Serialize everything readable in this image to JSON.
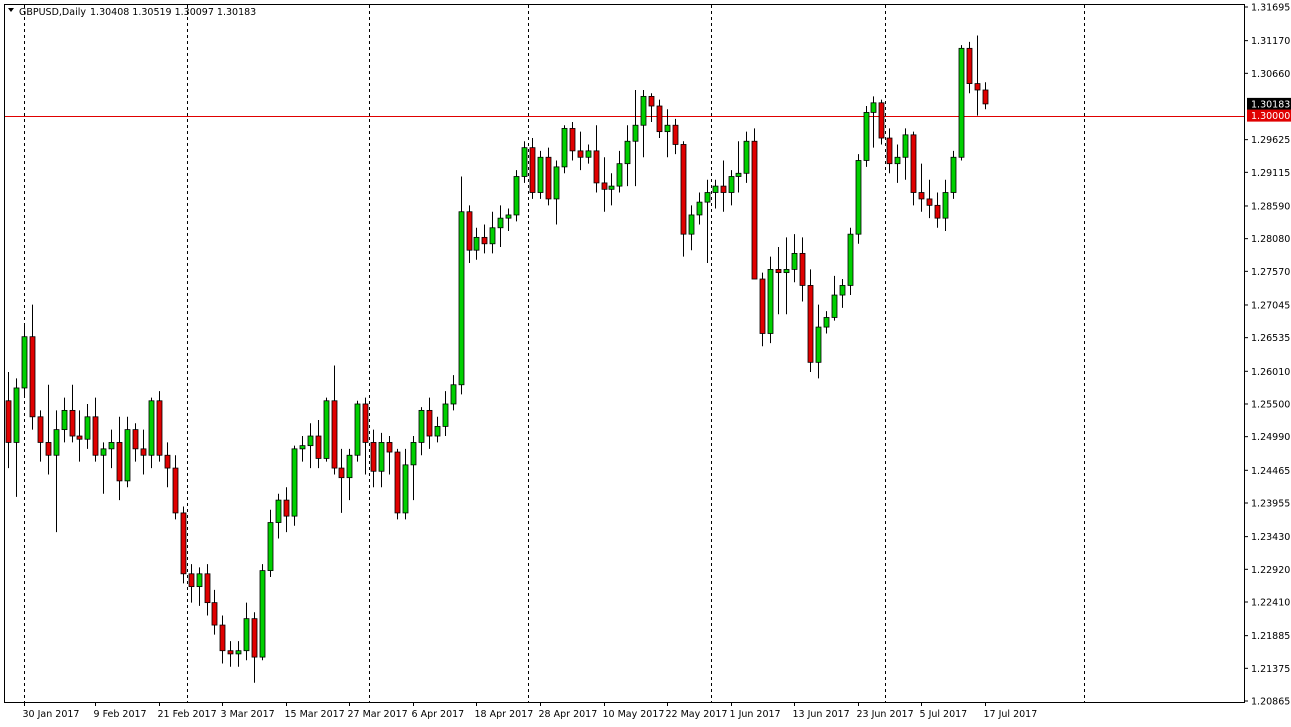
{
  "header": {
    "symbol": "GBPUSD,Daily",
    "quote": "1.30408 1.30519 1.30097 1.30183"
  },
  "colors": {
    "bull": "#00d000",
    "bear": "#e00000",
    "wick": "#000000",
    "level_line": "#e00000",
    "price_tag": "#000000",
    "level_tag": "#e00000"
  },
  "chart_data": {
    "type": "candlestick",
    "title": "",
    "xlabel": "",
    "ylabel": "",
    "ylim": [
      1.20865,
      1.31695
    ],
    "y_ticks": [
      "1.31695",
      "1.31170",
      "1.30660",
      "1.30183",
      "1.30000",
      "1.29625",
      "1.29115",
      "1.28590",
      "1.28080",
      "1.27570",
      "1.27045",
      "1.26535",
      "1.26010",
      "1.25500",
      "1.24990",
      "1.24465",
      "1.23955",
      "1.23430",
      "1.22920",
      "1.22410",
      "1.21885",
      "1.21375",
      "1.20865"
    ],
    "x_ticks": [
      {
        "label": "30 Jan 2017",
        "index": 2
      },
      {
        "label": "9 Feb 2017",
        "index": 11
      },
      {
        "label": "21 Feb 2017",
        "index": 19
      },
      {
        "label": "3 Mar 2017",
        "index": 27
      },
      {
        "label": "15 Mar 2017",
        "index": 35
      },
      {
        "label": "27 Mar 2017",
        "index": 43
      },
      {
        "label": "6 Apr 2017",
        "index": 51
      },
      {
        "label": "18 Apr 2017",
        "index": 59
      },
      {
        "label": "28 Apr 2017",
        "index": 67
      },
      {
        "label": "10 May 2017",
        "index": 75
      },
      {
        "label": "22 May 2017",
        "index": 83
      },
      {
        "label": "1 Jun 2017",
        "index": 91
      },
      {
        "label": "13 Jun 2017",
        "index": 99
      },
      {
        "label": "23 Jun 2017",
        "index": 107
      },
      {
        "label": "5 Jul 2017",
        "index": 115
      },
      {
        "label": "17 Jul 2017",
        "index": 123
      }
    ],
    "separators_index": [
      2,
      22.5,
      45.5,
      65.5,
      88.5,
      110.5,
      135.5
    ],
    "current_price": {
      "label": "1.30183",
      "value": 1.30183
    },
    "level": {
      "label": "1.30000",
      "value": 1.3
    },
    "ohlc": [
      [
        1.2555,
        1.26,
        1.245,
        1.249
      ],
      [
        1.249,
        1.259,
        1.2405,
        1.2575
      ],
      [
        1.2575,
        1.2675,
        1.256,
        1.2655
      ],
      [
        1.2655,
        1.2705,
        1.251,
        1.253
      ],
      [
        1.253,
        1.254,
        1.246,
        1.249
      ],
      [
        1.249,
        1.258,
        1.244,
        1.247
      ],
      [
        1.247,
        1.254,
        1.235,
        1.251
      ],
      [
        1.251,
        1.256,
        1.249,
        1.254
      ],
      [
        1.254,
        1.258,
        1.249,
        1.25
      ],
      [
        1.25,
        1.254,
        1.246,
        1.2495
      ],
      [
        1.2495,
        1.255,
        1.248,
        1.253
      ],
      [
        1.253,
        1.256,
        1.246,
        1.247
      ],
      [
        1.247,
        1.249,
        1.241,
        1.248
      ],
      [
        1.248,
        1.251,
        1.245,
        1.249
      ],
      [
        1.249,
        1.253,
        1.24,
        1.243
      ],
      [
        1.243,
        1.253,
        1.242,
        1.251
      ],
      [
        1.251,
        1.252,
        1.246,
        1.248
      ],
      [
        1.248,
        1.251,
        1.244,
        1.247
      ],
      [
        1.247,
        1.256,
        1.245,
        1.2555
      ],
      [
        1.2555,
        1.257,
        1.246,
        1.247
      ],
      [
        1.247,
        1.249,
        1.242,
        1.245
      ],
      [
        1.245,
        1.247,
        1.237,
        1.238
      ],
      [
        1.238,
        1.239,
        1.227,
        1.2285
      ],
      [
        1.2285,
        1.23,
        1.224,
        1.2265
      ],
      [
        1.2265,
        1.2295,
        1.2235,
        1.2285
      ],
      [
        1.2285,
        1.23,
        1.222,
        1.224
      ],
      [
        1.224,
        1.226,
        1.219,
        1.2205
      ],
      [
        1.2205,
        1.222,
        1.2145,
        1.2165
      ],
      [
        1.2165,
        1.218,
        1.214,
        1.216
      ],
      [
        1.216,
        1.218,
        1.214,
        1.2165
      ],
      [
        1.2165,
        1.224,
        1.215,
        1.2215
      ],
      [
        1.2215,
        1.2225,
        1.2115,
        1.2155
      ],
      [
        1.2155,
        1.23,
        1.215,
        1.229
      ],
      [
        1.229,
        1.2385,
        1.228,
        1.2365
      ],
      [
        1.2365,
        1.241,
        1.234,
        1.24
      ],
      [
        1.24,
        1.242,
        1.235,
        1.2375
      ],
      [
        1.2375,
        1.2485,
        1.236,
        1.248
      ],
      [
        1.248,
        1.25,
        1.246,
        1.2485
      ],
      [
        1.2485,
        1.252,
        1.245,
        1.25
      ],
      [
        1.25,
        1.2525,
        1.245,
        1.2465
      ],
      [
        1.2465,
        1.256,
        1.246,
        1.2555
      ],
      [
        1.2555,
        1.261,
        1.244,
        1.245
      ],
      [
        1.245,
        1.248,
        1.238,
        1.2435
      ],
      [
        1.2435,
        1.248,
        1.24,
        1.247
      ],
      [
        1.247,
        1.2555,
        1.246,
        1.255
      ],
      [
        1.255,
        1.256,
        1.244,
        1.249
      ],
      [
        1.249,
        1.251,
        1.242,
        1.2445
      ],
      [
        1.2445,
        1.2505,
        1.242,
        1.249
      ],
      [
        1.249,
        1.25,
        1.244,
        1.2475
      ],
      [
        1.2475,
        1.248,
        1.237,
        1.238
      ],
      [
        1.238,
        1.248,
        1.237,
        1.2455
      ],
      [
        1.2455,
        1.25,
        1.24,
        1.249
      ],
      [
        1.249,
        1.2545,
        1.247,
        1.254
      ],
      [
        1.254,
        1.256,
        1.248,
        1.25
      ],
      [
        1.25,
        1.253,
        1.249,
        1.2515
      ],
      [
        1.2515,
        1.257,
        1.25,
        1.255
      ],
      [
        1.255,
        1.2595,
        1.254,
        1.258
      ],
      [
        1.258,
        1.2905,
        1.2565,
        1.285
      ],
      [
        1.285,
        1.286,
        1.277,
        1.279
      ],
      [
        1.279,
        1.2825,
        1.2775,
        1.281
      ],
      [
        1.281,
        1.283,
        1.2785,
        1.28
      ],
      [
        1.28,
        1.285,
        1.2785,
        1.2825
      ],
      [
        1.2825,
        1.286,
        1.2795,
        1.284
      ],
      [
        1.284,
        1.2855,
        1.282,
        1.2845
      ],
      [
        1.2845,
        1.2915,
        1.2835,
        1.2905
      ],
      [
        1.2905,
        1.296,
        1.2895,
        1.295
      ],
      [
        1.295,
        1.2965,
        1.287,
        1.288
      ],
      [
        1.288,
        1.2945,
        1.287,
        1.2935
      ],
      [
        1.2935,
        1.295,
        1.286,
        1.287
      ],
      [
        1.287,
        1.293,
        1.283,
        1.292
      ],
      [
        1.292,
        1.2985,
        1.291,
        1.298
      ],
      [
        1.298,
        1.299,
        1.293,
        1.2945
      ],
      [
        1.2945,
        1.2975,
        1.2915,
        1.2935
      ],
      [
        1.2935,
        1.2955,
        1.2925,
        1.2945
      ],
      [
        1.2945,
        1.2985,
        1.288,
        1.2895
      ],
      [
        1.2895,
        1.2935,
        1.285,
        1.2885
      ],
      [
        1.2885,
        1.291,
        1.286,
        1.289
      ],
      [
        1.289,
        1.2945,
        1.288,
        1.2925
      ],
      [
        1.2925,
        1.2985,
        1.289,
        1.296
      ],
      [
        1.296,
        1.304,
        1.289,
        1.2985
      ],
      [
        1.2985,
        1.304,
        1.2935,
        1.303
      ],
      [
        1.303,
        1.3035,
        1.299,
        1.3015
      ],
      [
        1.3015,
        1.3025,
        1.2965,
        1.2975
      ],
      [
        1.2975,
        1.301,
        1.2935,
        1.2985
      ],
      [
        1.2985,
        1.2995,
        1.294,
        1.2955
      ],
      [
        1.2955,
        1.296,
        1.278,
        1.2815
      ],
      [
        1.2815,
        1.286,
        1.279,
        1.2845
      ],
      [
        1.2845,
        1.288,
        1.283,
        1.2865
      ],
      [
        1.2865,
        1.29,
        1.277,
        1.288
      ],
      [
        1.288,
        1.29,
        1.2855,
        1.289
      ],
      [
        1.289,
        1.293,
        1.285,
        1.288
      ],
      [
        1.288,
        1.2915,
        1.286,
        1.2905
      ],
      [
        1.2905,
        1.296,
        1.288,
        1.291
      ],
      [
        1.291,
        1.2975,
        1.2895,
        1.296
      ],
      [
        1.296,
        1.298,
        1.2745,
        1.2745
      ],
      [
        1.2745,
        1.2755,
        1.264,
        1.266
      ],
      [
        1.266,
        1.278,
        1.2645,
        1.276
      ],
      [
        1.276,
        1.2795,
        1.269,
        1.2755
      ],
      [
        1.2755,
        1.281,
        1.269,
        1.276
      ],
      [
        1.276,
        1.2815,
        1.274,
        1.2785
      ],
      [
        1.2785,
        1.281,
        1.271,
        1.2735
      ],
      [
        1.2735,
        1.276,
        1.26,
        1.2615
      ],
      [
        1.2615,
        1.2705,
        1.259,
        1.267
      ],
      [
        1.267,
        1.2695,
        1.266,
        1.2685
      ],
      [
        1.2685,
        1.275,
        1.268,
        1.272
      ],
      [
        1.272,
        1.2745,
        1.27,
        1.2735
      ],
      [
        1.2735,
        1.2825,
        1.272,
        1.2815
      ],
      [
        1.2815,
        1.294,
        1.28,
        1.293
      ],
      [
        1.293,
        1.3015,
        1.292,
        1.3005
      ],
      [
        1.3005,
        1.303,
        1.295,
        1.302
      ],
      [
        1.302,
        1.3025,
        1.2955,
        1.2965
      ],
      [
        1.2965,
        1.298,
        1.291,
        1.2925
      ],
      [
        1.2925,
        1.2955,
        1.2895,
        1.2935
      ],
      [
        1.2935,
        1.298,
        1.29,
        1.297
      ],
      [
        1.297,
        1.2975,
        1.286,
        1.288
      ],
      [
        1.288,
        1.2925,
        1.285,
        1.287
      ],
      [
        1.287,
        1.29,
        1.284,
        1.286
      ],
      [
        1.286,
        1.288,
        1.2825,
        1.284
      ],
      [
        1.284,
        1.29,
        1.282,
        1.288
      ],
      [
        1.288,
        1.2945,
        1.287,
        1.2935
      ],
      [
        1.2935,
        1.311,
        1.293,
        1.3105
      ],
      [
        1.3105,
        1.3115,
        1.3035,
        1.305
      ],
      [
        1.305,
        1.3125,
        1.3,
        1.304
      ],
      [
        1.304,
        1.3052,
        1.301,
        1.30183
      ]
    ]
  }
}
